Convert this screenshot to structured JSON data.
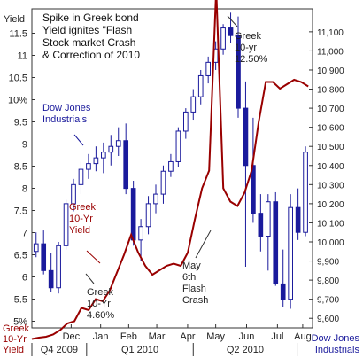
{
  "chart_data": {
    "type": "line",
    "title": "Spike in Greek bond Yield ignites \"Flash Stock market Crash & Correction of 2010",
    "title_lines": [
      "Spike in Greek bond",
      "Yield ignites \"Flash",
      "Stock market Crash",
      "& Correction of 2010"
    ],
    "left_axis": {
      "label": "Yield",
      "ticks": [
        5,
        5.5,
        6,
        6.5,
        7,
        7.5,
        8,
        8.5,
        9,
        9.5,
        10,
        10.5,
        11,
        11.5
      ],
      "tick_labels": [
        "5%",
        "5.5",
        "6",
        "6.5",
        "7",
        "7.5",
        "8",
        "8.5",
        "9",
        "9.5",
        "10%",
        "10.5",
        "11",
        "11.5"
      ],
      "ylim": [
        4.85,
        12.05
      ]
    },
    "right_axis": {
      "ticks": [
        9600,
        9700,
        9800,
        9900,
        10000,
        10100,
        10200,
        10300,
        10400,
        10500,
        10600,
        10700,
        10800,
        10900,
        11000,
        11100
      ],
      "tick_labels": [
        "9,600",
        "9,700",
        "9,800",
        "9,900",
        "10,000",
        "10,100",
        "10,200",
        "10,300",
        "10,400",
        "10,500",
        "10,600",
        "10,700",
        "10,800",
        "10,900",
        "11,000",
        "11,100"
      ],
      "ylim": [
        9550,
        11220
      ]
    },
    "x_months": [
      "Dec",
      "Jan",
      "Feb",
      "Mar",
      "Apr",
      "May",
      "Jun",
      "Jul",
      "Aug"
    ],
    "x_quarters": [
      "Q4 2009",
      "Q1 2010",
      "Q2 2010"
    ],
    "series": [
      {
        "name": "Greek 10-Yr Yield",
        "axis": "left",
        "color": "#990000",
        "type": "line",
        "points": [
          [
            "Nov",
            4.6
          ],
          [
            "Nov",
            4.63
          ],
          [
            "Nov",
            4.65
          ],
          [
            "Nov",
            4.7
          ],
          [
            "Dec",
            4.8
          ],
          [
            "Dec",
            4.95
          ],
          [
            "Dec",
            5.0
          ],
          [
            "Dec",
            5.3
          ],
          [
            "Dec",
            5.25
          ],
          [
            "Jan",
            5.5
          ],
          [
            "Jan",
            5.45
          ],
          [
            "Jan",
            5.7
          ],
          [
            "Jan",
            6.1
          ],
          [
            "Feb",
            6.5
          ],
          [
            "Feb",
            6.95
          ],
          [
            "Feb",
            6.55
          ],
          [
            "Feb",
            6.25
          ],
          [
            "Mar",
            6.05
          ],
          [
            "Mar",
            6.15
          ],
          [
            "Mar",
            6.25
          ],
          [
            "Mar",
            6.3
          ],
          [
            "Apr",
            6.25
          ],
          [
            "Apr",
            6.55
          ],
          [
            "Apr",
            7.3
          ],
          [
            "Apr",
            8.0
          ],
          [
            "May",
            8.4
          ],
          [
            "May",
            12.5
          ],
          [
            "May",
            8.0
          ],
          [
            "May",
            7.7
          ],
          [
            "Jun",
            7.6
          ],
          [
            "Jun",
            7.9
          ],
          [
            "Jun",
            8.4
          ],
          [
            "Jun",
            9.5
          ],
          [
            "Jul",
            10.4
          ],
          [
            "Jul",
            10.4
          ],
          [
            "Jul",
            10.25
          ],
          [
            "Jul",
            10.35
          ],
          [
            "Aug",
            10.45
          ],
          [
            "Aug",
            10.4
          ],
          [
            "Aug",
            10.3
          ]
        ]
      },
      {
        "name": "Dow Jones Industrials",
        "axis": "right",
        "color": "#1a1a9c",
        "type": "candlestick",
        "ohlc": [
          [
            9950,
            10050,
            9920,
            9990
          ],
          [
            9990,
            10060,
            9830,
            9850
          ],
          [
            9850,
            9940,
            9740,
            9760
          ],
          [
            9760,
            10000,
            9730,
            9980
          ],
          [
            9980,
            10220,
            9960,
            10200
          ],
          [
            10200,
            10330,
            10160,
            10300
          ],
          [
            10300,
            10420,
            10250,
            10380
          ],
          [
            10380,
            10460,
            10330,
            10410
          ],
          [
            10410,
            10500,
            10370,
            10440
          ],
          [
            10440,
            10520,
            10360,
            10470
          ],
          [
            10470,
            10560,
            10400,
            10500
          ],
          [
            10500,
            10600,
            10450,
            10530
          ],
          [
            10530,
            10620,
            10250,
            10280
          ],
          [
            10280,
            10320,
            9980,
            10010
          ],
          [
            10010,
            10120,
            9900,
            10080
          ],
          [
            10080,
            10240,
            10040,
            10200
          ],
          [
            10200,
            10300,
            10150,
            10250
          ],
          [
            10250,
            10400,
            10200,
            10370
          ],
          [
            10370,
            10460,
            10340,
            10420
          ],
          [
            10420,
            10600,
            10390,
            10580
          ],
          [
            10580,
            10700,
            10540,
            10680
          ],
          [
            10680,
            10800,
            10640,
            10760
          ],
          [
            10760,
            10900,
            10720,
            10870
          ],
          [
            10870,
            10970,
            10830,
            10940
          ],
          [
            10940,
            11050,
            10900,
            11010
          ],
          [
            11010,
            11140,
            10980,
            11120
          ],
          [
            11120,
            11200,
            11040,
            11080
          ],
          [
            11080,
            11180,
            10650,
            10700
          ],
          [
            10700,
            10840,
            9870,
            10400
          ],
          [
            10400,
            10650,
            10100,
            10150
          ],
          [
            10150,
            10250,
            9950,
            10030
          ],
          [
            10030,
            10250,
            9850,
            10210
          ],
          [
            10210,
            10260,
            9770,
            9780
          ],
          [
            9780,
            9960,
            9660,
            9700
          ],
          [
            9700,
            10250,
            9650,
            10180
          ],
          [
            10180,
            10280,
            10010,
            10050
          ],
          [
            10050,
            10500,
            10030,
            10470
          ]
        ]
      }
    ],
    "annotations": [
      {
        "text": [
          "Greek",
          "10-yr",
          "12.50%"
        ],
        "color": "#222222"
      },
      {
        "text": [
          "Dow Jones",
          "Industrials"
        ],
        "color": "#1a1a9c"
      },
      {
        "text": [
          "Greek",
          "10-Yr",
          "Yield"
        ],
        "color": "#990000"
      },
      {
        "text": [
          "Greek",
          "10-Yr",
          "4.60%"
        ],
        "color": "#222222"
      },
      {
        "text": [
          "May",
          "6th",
          "Flash",
          "Crash"
        ],
        "color": "#222222"
      }
    ],
    "left_legend": [
      "Greek",
      "10-Yr",
      "Yield"
    ],
    "right_legend": [
      "Dow Jones",
      "Industrials"
    ],
    "grid": false
  }
}
